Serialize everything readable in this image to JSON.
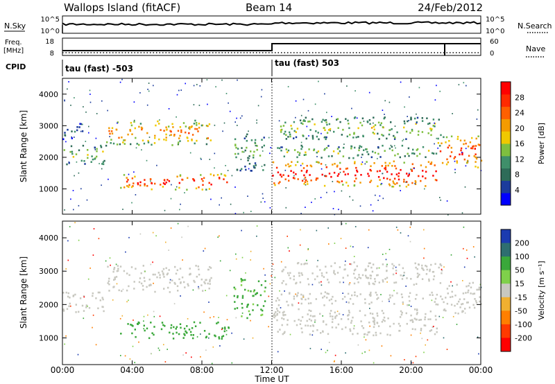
{
  "header": {
    "site": "Wallops Island (fitACF)",
    "beam": "Beam 14",
    "date": "24/Feb/2012"
  },
  "aux_panels": {
    "nsky": {
      "label": "N.Sky",
      "ticks": [
        "10^5",
        "10^0"
      ],
      "right_label": "N.Search",
      "right_ticks": [
        "10^5",
        "10^0"
      ]
    },
    "freq": {
      "label": "Freq.",
      "unit": "[MHz]",
      "ticks": [
        "18",
        "8"
      ],
      "right_label": "Nave",
      "right_ticks": [
        "60",
        "0"
      ]
    },
    "cpid": {
      "label": "CPID",
      "segments": [
        {
          "text": "tau (fast) -503",
          "start_hr": 0
        },
        {
          "text": "tau (fast) 503",
          "start_hr": 12
        }
      ]
    }
  },
  "colors": {
    "power_scale": [
      "#0000ff",
      "#1b3b9c",
      "#2e6b58",
      "#3f8f6a",
      "#7fbf3f",
      "#f0c800",
      "#f39b00",
      "#ff6000",
      "#ff2a00",
      "#ff0000"
    ],
    "velocity_scale": [
      "#1b3bb0",
      "#2e6e70",
      "#3aa83a",
      "#7fd04a",
      "#c8c8c0",
      "#f0b030",
      "#ff7f00",
      "#ff3a00",
      "#ff0000"
    ]
  },
  "chart_data": [
    {
      "type": "heatmap",
      "name": "Power panel",
      "ylabel": "Slant Range [km]",
      "yticks": [
        "1000",
        "2000",
        "3000",
        "4000"
      ],
      "ylim": [
        200,
        4500
      ],
      "xlim": [
        0,
        24
      ],
      "colorbar_label": "Power [dB]",
      "colorbar_ticks": [
        "4",
        "8",
        "12",
        "16",
        "20",
        "24",
        "28"
      ],
      "bands": [
        {
          "t0": 0.0,
          "t1": 2.5,
          "r0": 1800,
          "r1": 2400,
          "level": 0.45
        },
        {
          "t0": 0.0,
          "t1": 1.2,
          "r0": 2600,
          "r1": 3100,
          "level": 0.2
        },
        {
          "t0": 2.5,
          "t1": 8.5,
          "r0": 2400,
          "r1": 3200,
          "level": 0.65
        },
        {
          "t0": 3.3,
          "t1": 9.5,
          "r0": 1000,
          "r1": 1500,
          "level": 0.85
        },
        {
          "t0": 9.8,
          "t1": 11.6,
          "r0": 1600,
          "r1": 2800,
          "level": 0.35
        },
        {
          "t0": 12.0,
          "t1": 21.5,
          "r0": 1100,
          "r1": 1900,
          "level": 0.9
        },
        {
          "t0": 12.2,
          "t1": 21.8,
          "r0": 2000,
          "r1": 2400,
          "level": 0.4
        },
        {
          "t0": 12.3,
          "t1": 21.8,
          "r0": 2600,
          "r1": 3300,
          "level": 0.45
        },
        {
          "t0": 21.5,
          "t1": 24.0,
          "r0": 1700,
          "r1": 2700,
          "level": 0.8
        }
      ]
    },
    {
      "type": "heatmap",
      "name": "Velocity panel",
      "ylabel": "Slant Range [km]",
      "yticks": [
        "1000",
        "2000",
        "3000",
        "4000"
      ],
      "ylim": [
        200,
        4500
      ],
      "xlim": [
        0,
        24
      ],
      "xlabel": "Time UT",
      "xticks": [
        "00:00",
        "04:00",
        "08:00",
        "12:00",
        "16:00",
        "20:00",
        "00:00"
      ],
      "colorbar_label": "Velocity [m s⁻¹]",
      "colorbar_ticks": [
        "-200",
        "-100",
        "-50",
        "-15",
        "15",
        "50",
        "100",
        "200"
      ],
      "bands": [
        {
          "t0": 0.0,
          "t1": 2.5,
          "r0": 1800,
          "r1": 2400,
          "v": 0
        },
        {
          "t0": 2.5,
          "t1": 8.5,
          "r0": 2400,
          "r1": 3200,
          "v": 0
        },
        {
          "t0": 3.3,
          "t1": 9.5,
          "r0": 1000,
          "r1": 1500,
          "v": 40
        },
        {
          "t0": 9.8,
          "t1": 11.6,
          "r0": 1600,
          "r1": 2800,
          "v": 35
        },
        {
          "t0": 12.0,
          "t1": 21.5,
          "r0": 1100,
          "r1": 1900,
          "v": 0
        },
        {
          "t0": 12.2,
          "t1": 21.8,
          "r0": 2000,
          "r1": 2400,
          "v": 0
        },
        {
          "t0": 12.3,
          "t1": 21.8,
          "r0": 2600,
          "r1": 3300,
          "v": 0
        },
        {
          "t0": 21.5,
          "t1": 24.0,
          "r0": 1700,
          "r1": 2700,
          "v": 0
        }
      ]
    }
  ]
}
